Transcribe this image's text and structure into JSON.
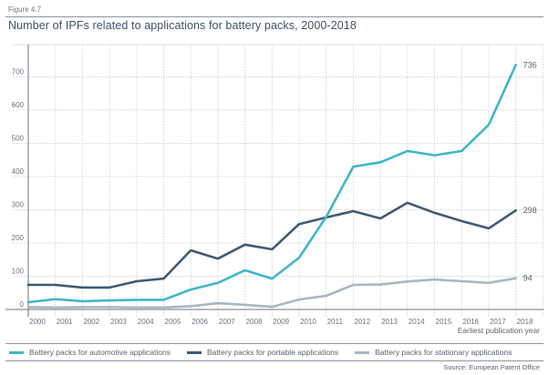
{
  "figure_label": "Figure 4.7",
  "title": "Number of IPFs related to applications for battery packs, 2000-2018",
  "source": "Source: European Patent Office",
  "chart_data": {
    "type": "line",
    "title": "Number of IPFs related to applications for battery packs, 2000-2018",
    "xlabel": "Earliest publication year",
    "ylabel": "",
    "x": [
      "2000",
      "2001",
      "2002",
      "2003",
      "2004",
      "2005",
      "2006",
      "2007",
      "2008",
      "2009",
      "2010",
      "2011",
      "2012",
      "2013",
      "2014",
      "2015",
      "2016",
      "2017",
      "2018"
    ],
    "ylim": [
      0,
      800
    ],
    "yticks": [
      0,
      100,
      200,
      300,
      400,
      500,
      600,
      700
    ],
    "grid": true,
    "legend_position": "bottom",
    "series": [
      {
        "name": "Battery packs for automotive applications",
        "color": "#40b7c9",
        "values": [
          22,
          31,
          25,
          27,
          29,
          29,
          60,
          80,
          118,
          93,
          156,
          279,
          430,
          443,
          477,
          464,
          477,
          556,
          736
        ],
        "end_label": "736"
      },
      {
        "name": "Battery packs for portable applications",
        "color": "#3e5b74",
        "values": [
          74,
          74,
          66,
          66,
          85,
          93,
          178,
          153,
          195,
          181,
          257,
          277,
          296,
          274,
          321,
          291,
          266,
          244,
          298
        ],
        "end_label": "298"
      },
      {
        "name": "Battery packs for stationary applications",
        "color": "#a8b7c5",
        "values": [
          7,
          6,
          7,
          7,
          6,
          6,
          10,
          19,
          14,
          8,
          30,
          41,
          74,
          75,
          84,
          90,
          85,
          80,
          94
        ],
        "end_label": "94"
      }
    ]
  }
}
